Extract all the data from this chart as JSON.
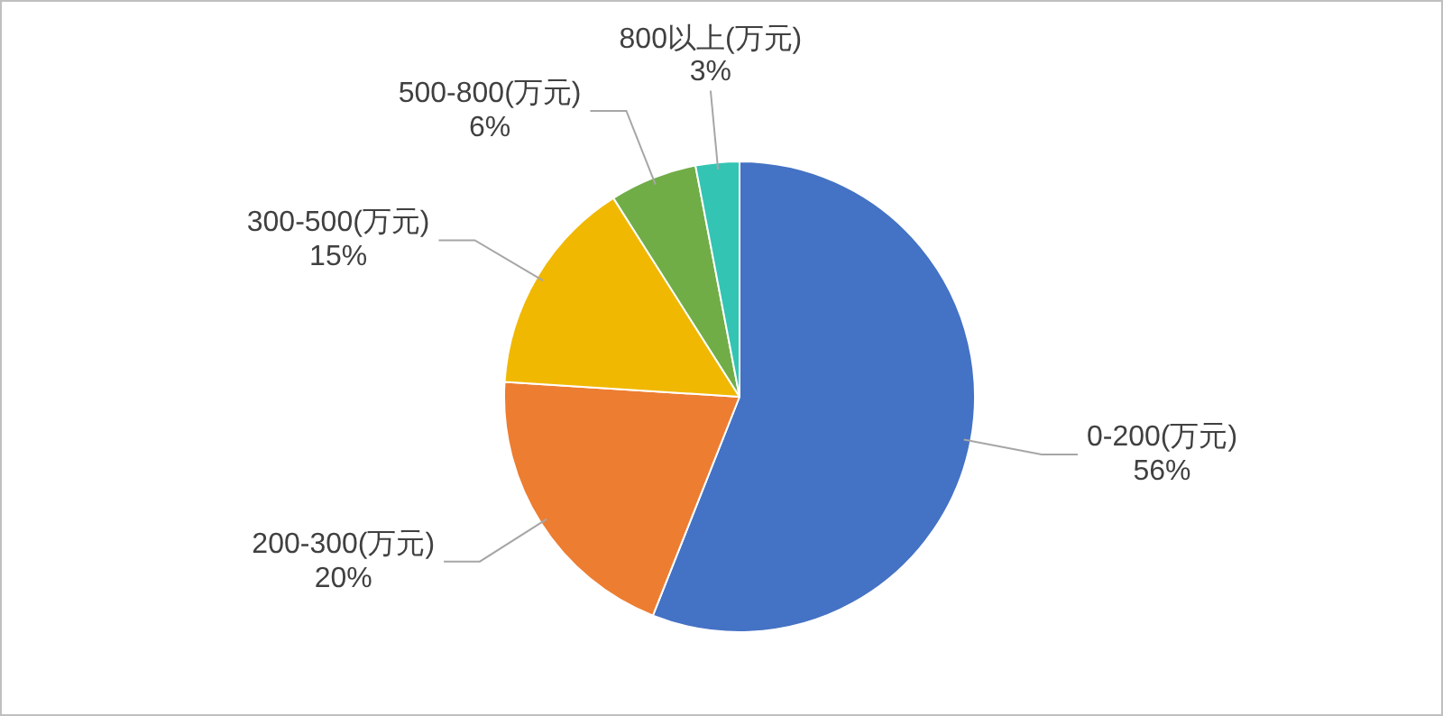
{
  "chart_data": {
    "type": "pie",
    "categories": [
      "0-200(万元)",
      "200-300(万元)",
      "300-500(万元)",
      "500-800(万元)",
      "800以上(万元)"
    ],
    "values": [
      56,
      20,
      15,
      6,
      3
    ],
    "value_labels": [
      "56%",
      "20%",
      "15%",
      "6%",
      "3%"
    ],
    "colors": [
      "#4472c4",
      "#ed7d31",
      "#f0b800",
      "#70ad47",
      "#33c4b3"
    ],
    "legend": false
  }
}
